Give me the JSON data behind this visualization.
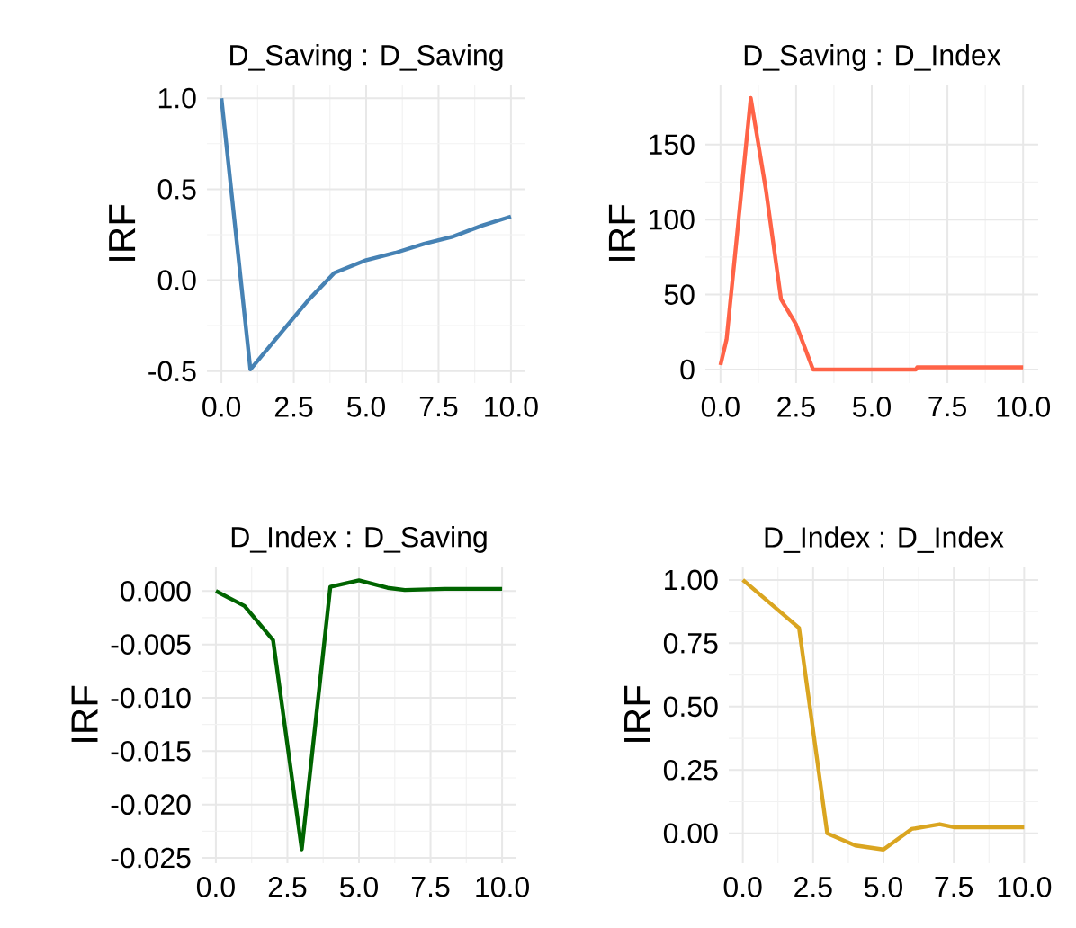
{
  "chart_data": [
    {
      "type": "line",
      "title": "D_Saving : D_Saving",
      "ylabel": "IRF",
      "color": "#4682b4",
      "grid": true,
      "x": [
        0,
        1,
        2,
        3,
        3.9,
        5,
        6,
        7,
        8,
        9,
        10
      ],
      "values": [
        1.0,
        -0.49,
        -0.3,
        -0.11,
        0.04,
        0.11,
        0.15,
        0.2,
        0.24,
        0.3,
        0.35
      ],
      "xlim": [
        -0.5,
        10.5
      ],
      "ylim": [
        -0.565,
        1.075
      ],
      "xticks": [
        {
          "value": 0,
          "label": "0.0"
        },
        {
          "value": 2.5,
          "label": "2.5"
        },
        {
          "value": 5,
          "label": "5.0"
        },
        {
          "value": 7.5,
          "label": "7.5"
        },
        {
          "value": 10,
          "label": "10.0"
        }
      ],
      "yticks": [
        {
          "value": -0.5,
          "label": "-0.5"
        },
        {
          "value": 0,
          "label": "0.0"
        },
        {
          "value": 0.5,
          "label": "0.5"
        },
        {
          "value": 1,
          "label": "1.0"
        }
      ]
    },
    {
      "type": "line",
      "title": "D_Saving : D_Index",
      "ylabel": "IRF",
      "color": "#ff6347",
      "grid": true,
      "x": [
        0,
        0.2,
        1.0,
        1.5,
        2.0,
        2.5,
        3.06,
        4,
        5,
        6.46,
        6.5,
        8,
        10
      ],
      "values": [
        3,
        20,
        181,
        120,
        47,
        30,
        0,
        0,
        0,
        0,
        1.5,
        1.5,
        1.5
      ],
      "xlim": [
        -0.5,
        10.5
      ],
      "ylim": [
        -9,
        190
      ],
      "xticks": [
        {
          "value": 0,
          "label": "0.0"
        },
        {
          "value": 2.5,
          "label": "2.5"
        },
        {
          "value": 5,
          "label": "5.0"
        },
        {
          "value": 7.5,
          "label": "7.5"
        },
        {
          "value": 10,
          "label": "10.0"
        }
      ],
      "yticks": [
        {
          "value": 0,
          "label": "0"
        },
        {
          "value": 50,
          "label": "50"
        },
        {
          "value": 100,
          "label": "100"
        },
        {
          "value": 150,
          "label": "150"
        }
      ]
    },
    {
      "type": "line",
      "title": "D_Index : D_Saving",
      "ylabel": "IRF",
      "color": "#006400",
      "grid": true,
      "x": [
        0,
        1,
        2,
        3,
        4,
        5,
        6,
        6.6,
        8,
        10
      ],
      "values": [
        0,
        -0.0014,
        -0.0046,
        -0.0242,
        0.0004,
        0.001,
        0.0003,
        0.0001,
        0.0002,
        0.0002
      ],
      "xlim": [
        -0.5,
        10.5
      ],
      "ylim": [
        -0.0255,
        0.0023
      ],
      "xticks": [
        {
          "value": 0,
          "label": "0.0"
        },
        {
          "value": 2.5,
          "label": "2.5"
        },
        {
          "value": 5,
          "label": "5.0"
        },
        {
          "value": 7.5,
          "label": "7.5"
        },
        {
          "value": 10,
          "label": "10.0"
        }
      ],
      "yticks": [
        {
          "value": -0.025,
          "label": "-0.025"
        },
        {
          "value": -0.02,
          "label": "-0.020"
        },
        {
          "value": -0.015,
          "label": "-0.015"
        },
        {
          "value": -0.01,
          "label": "-0.010"
        },
        {
          "value": -0.005,
          "label": "-0.005"
        },
        {
          "value": 0,
          "label": "0.000"
        }
      ]
    },
    {
      "type": "line",
      "title": "D_Index : D_Index",
      "ylabel": "IRF",
      "color": "#daa520",
      "grid": true,
      "x": [
        0,
        1,
        2,
        3,
        4,
        5,
        6,
        7,
        7.5,
        10
      ],
      "values": [
        1.0,
        0.905,
        0.81,
        0.0,
        -0.048,
        -0.064,
        0.017,
        0.036,
        0.024,
        0.024
      ],
      "xlim": [
        -0.5,
        10.5
      ],
      "ylim": [
        -0.118,
        1.053
      ],
      "xticks": [
        {
          "value": 0,
          "label": "0.0"
        },
        {
          "value": 2.5,
          "label": "2.5"
        },
        {
          "value": 5,
          "label": "5.0"
        },
        {
          "value": 7.5,
          "label": "7.5"
        },
        {
          "value": 10,
          "label": "10.0"
        }
      ],
      "yticks": [
        {
          "value": 0,
          "label": "0.00"
        },
        {
          "value": 0.25,
          "label": "0.25"
        },
        {
          "value": 0.5,
          "label": "0.50"
        },
        {
          "value": 0.75,
          "label": "0.75"
        },
        {
          "value": 1,
          "label": "1.00"
        }
      ]
    }
  ]
}
